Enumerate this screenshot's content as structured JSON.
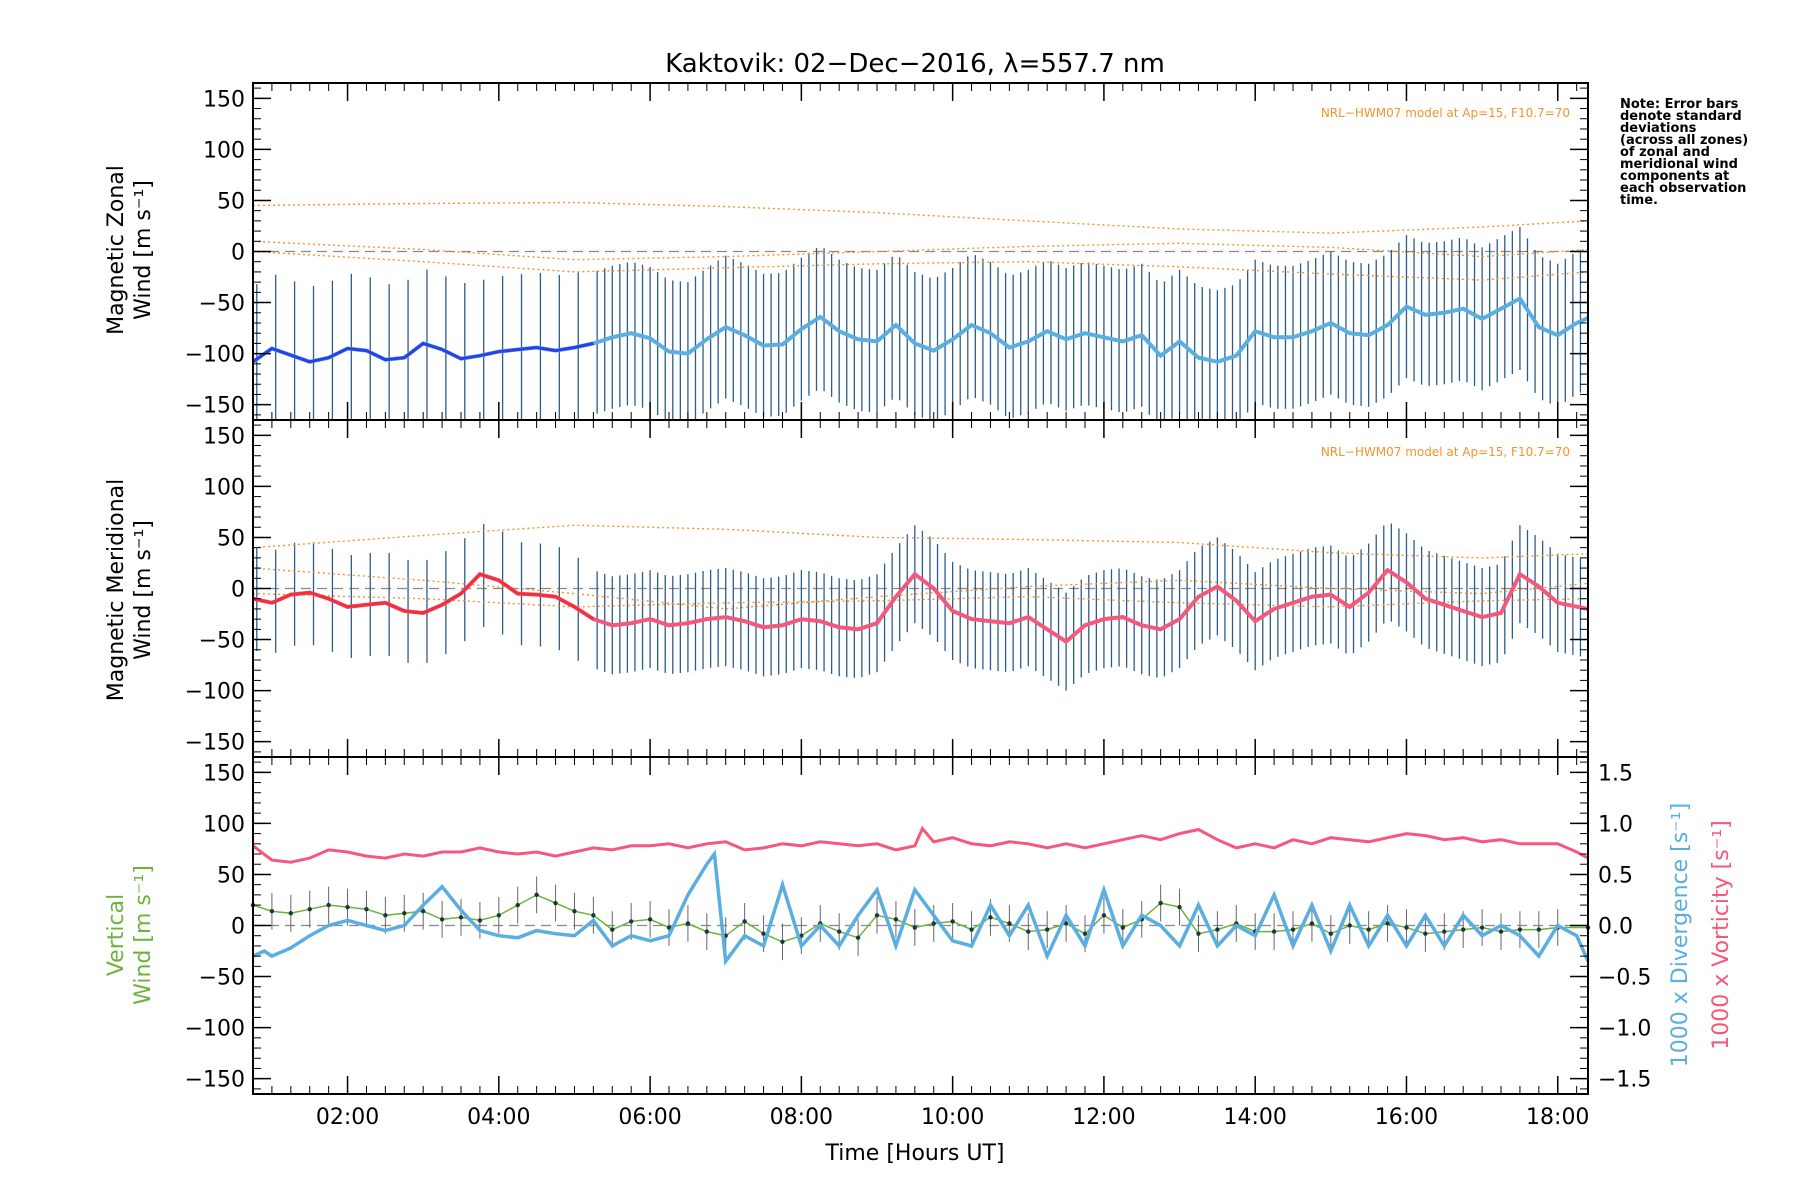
{
  "figure": {
    "title": "Kaktovik: 02−Dec−2016, λ=557.7 nm",
    "xlabel": "Time [Hours UT]",
    "note_lines": [
      "Note: Error bars",
      "denote standard",
      "deviations",
      "(across all zones)",
      "of zonal and",
      "meridional wind",
      "components at",
      "each observation",
      "time."
    ],
    "model_label": "NRL−HWM07 model at Ap=15, F10.7=70",
    "colors": {
      "zonal": "#2a3fe8",
      "zonal_light": "#5aaee0",
      "meridional": "#f0303c",
      "meridional_light": "#f5587a",
      "vertical": "#6ab43c",
      "divergence": "#5aaee0",
      "vorticity": "#f5587a",
      "error_bars": "#2d5d8a",
      "model": "#f5922b"
    }
  },
  "chart_data": [
    {
      "type": "line",
      "panel": "zonal",
      "ylabel": [
        "Magnetic Zonal",
        "Wind [m s⁻¹]"
      ],
      "ylim": [
        -165,
        165
      ],
      "yticks": [
        -150,
        -100,
        -50,
        0,
        50,
        100,
        150
      ],
      "xlim": [
        0.75,
        18.4
      ],
      "xticks": [
        2,
        4,
        6,
        8,
        10,
        12,
        14,
        16,
        18
      ],
      "xtick_labels": [
        "02:00",
        "04:00",
        "06:00",
        "08:00",
        "10:00",
        "12:00",
        "14:00",
        "16:00",
        "18:00"
      ],
      "series": [
        {
          "x": [
            0.75,
            1.0,
            1.5,
            1.75,
            2.0,
            2.25,
            2.5,
            2.75,
            3.0,
            3.25,
            3.5,
            3.75,
            4.0,
            4.25,
            4.5,
            4.75,
            5.0,
            5.25,
            5.5,
            5.75,
            6.0,
            6.25,
            6.5,
            6.75,
            7.0,
            7.25,
            7.5,
            7.75,
            8.0,
            8.25,
            8.5,
            8.75,
            9.0,
            9.25,
            9.5,
            9.75,
            10.0,
            10.25,
            10.5,
            10.75,
            11.0,
            11.25,
            11.5,
            11.75,
            12.0,
            12.25,
            12.5,
            12.75,
            13.0,
            13.25,
            13.5,
            13.75,
            14.0,
            14.25,
            14.5,
            14.75,
            15.0,
            15.25,
            15.5,
            15.75,
            16.0,
            16.25,
            16.5,
            16.75,
            17.0,
            17.25,
            17.5,
            17.75,
            18.0,
            18.25,
            18.4
          ],
          "y": [
            -108,
            -95,
            -108,
            -104,
            -95,
            -97,
            -106,
            -104,
            -90,
            -96,
            -105,
            -102,
            -98,
            -96,
            -94,
            -97,
            -94,
            -90,
            -84,
            -80,
            -85,
            -98,
            -100,
            -86,
            -74,
            -82,
            -92,
            -91,
            -76,
            -64,
            -78,
            -86,
            -88,
            -72,
            -90,
            -97,
            -86,
            -72,
            -80,
            -94,
            -88,
            -78,
            -86,
            -80,
            -84,
            -88,
            -82,
            -102,
            -88,
            -104,
            -108,
            -102,
            -78,
            -84,
            -84,
            -78,
            -70,
            -80,
            -82,
            -72,
            -54,
            -62,
            -60,
            -56,
            -66,
            -56,
            -46,
            -74,
            -82,
            -70,
            -65
          ],
          "std": 70
        }
      ],
      "model_lines": [
        {
          "x": [
            0.75,
            3.0,
            5.0,
            7.0,
            9.0,
            11.0,
            13.0,
            15.0,
            17.0,
            18.4
          ],
          "y": [
            45,
            47,
            48,
            44,
            38,
            30,
            22,
            18,
            24,
            30
          ]
        },
        {
          "x": [
            0.75,
            3.0,
            5.0,
            7.0,
            9.0,
            11.0,
            13.0,
            15.0,
            17.0,
            18.4
          ],
          "y": [
            10,
            2,
            -8,
            -5,
            0,
            5,
            8,
            4,
            -5,
            2
          ]
        },
        {
          "x": [
            0.75,
            3.0,
            5.0,
            7.0,
            9.0,
            11.0,
            13.0,
            15.0,
            17.0,
            18.4
          ],
          "y": [
            0,
            -10,
            -20,
            -16,
            -12,
            -10,
            -15,
            -22,
            -28,
            -20
          ]
        }
      ]
    },
    {
      "type": "line",
      "panel": "meridional",
      "ylabel": [
        "Magnetic Meridional",
        "Wind [m s⁻¹]"
      ],
      "ylim": [
        -165,
        165
      ],
      "yticks": [
        -150,
        -100,
        -50,
        0,
        50,
        100,
        150
      ],
      "xlim": [
        0.75,
        18.4
      ],
      "xticks": [
        2,
        4,
        6,
        8,
        10,
        12,
        14,
        16,
        18
      ],
      "xtick_labels": [
        "02:00",
        "04:00",
        "06:00",
        "08:00",
        "10:00",
        "12:00",
        "14:00",
        "16:00",
        "18:00"
      ],
      "series": [
        {
          "x": [
            0.75,
            1.0,
            1.25,
            1.5,
            1.75,
            2.0,
            2.25,
            2.5,
            2.75,
            3.0,
            3.25,
            3.5,
            3.75,
            4.0,
            4.25,
            4.5,
            4.75,
            5.0,
            5.25,
            5.5,
            5.75,
            6.0,
            6.25,
            6.5,
            6.75,
            7.0,
            7.25,
            7.5,
            7.75,
            8.0,
            8.25,
            8.5,
            8.75,
            9.0,
            9.25,
            9.5,
            9.75,
            10.0,
            10.25,
            10.5,
            10.75,
            11.0,
            11.25,
            11.5,
            11.75,
            12.0,
            12.25,
            12.5,
            12.75,
            13.0,
            13.25,
            13.5,
            13.75,
            14.0,
            14.25,
            14.5,
            14.75,
            15.0,
            15.25,
            15.5,
            15.75,
            16.0,
            16.25,
            16.5,
            16.75,
            17.0,
            17.25,
            17.5,
            17.75,
            18.0,
            18.4
          ],
          "y": [
            -10,
            -14,
            -6,
            -4,
            -10,
            -18,
            -16,
            -14,
            -22,
            -24,
            -16,
            -5,
            14,
            8,
            -5,
            -6,
            -8,
            -18,
            -30,
            -36,
            -34,
            -30,
            -36,
            -34,
            -30,
            -28,
            -32,
            -38,
            -36,
            -30,
            -32,
            -38,
            -40,
            -34,
            -8,
            14,
            0,
            -22,
            -30,
            -32,
            -34,
            -28,
            -40,
            -52,
            -36,
            -30,
            -28,
            -36,
            -40,
            -30,
            -8,
            2,
            -12,
            -32,
            -20,
            -14,
            -8,
            -6,
            -18,
            -4,
            18,
            6,
            -10,
            -16,
            -22,
            -28,
            -24,
            14,
            2,
            -14,
            -20
          ],
          "std": 48
        }
      ],
      "model_lines": [
        {
          "x": [
            0.75,
            3.0,
            5.0,
            7.0,
            9.0,
            11.0,
            13.0,
            15.0,
            17.0,
            18.4
          ],
          "y": [
            40,
            52,
            62,
            58,
            50,
            48,
            45,
            35,
            30,
            34
          ]
        },
        {
          "x": [
            0.75,
            3.0,
            5.0,
            7.0,
            9.0,
            11.0,
            13.0,
            15.0,
            17.0,
            18.4
          ],
          "y": [
            20,
            8,
            -5,
            -20,
            -8,
            2,
            8,
            0,
            -5,
            5
          ]
        },
        {
          "x": [
            0.75,
            3.0,
            5.0,
            7.0,
            9.0,
            11.0,
            13.0,
            15.0,
            17.0,
            18.4
          ],
          "y": [
            -5,
            -10,
            -18,
            -14,
            -12,
            -8,
            -14,
            -18,
            -12,
            -10
          ]
        }
      ]
    },
    {
      "type": "line",
      "panel": "vertical",
      "ylabel": [
        "Vertical",
        "Wind [m s⁻¹]"
      ],
      "ylim": [
        -165,
        165
      ],
      "yticks": [
        -150,
        -100,
        -50,
        0,
        50,
        100,
        150
      ],
      "y2label_div": "1000 x Divergence [s⁻¹]",
      "y2label_vort": "1000 x Vorticity [s⁻¹]",
      "y2lim": [
        -1.65,
        1.65
      ],
      "y2ticks": [
        -1.5,
        -1.0,
        -0.5,
        0.0,
        0.5,
        1.0,
        1.5
      ],
      "y2tick_labels": [
        "−1.5",
        "−1.0",
        "−0.5",
        "0.0",
        "0.5",
        "1.0",
        "1.5"
      ],
      "xlim": [
        0.75,
        18.4
      ],
      "xticks": [
        2,
        4,
        6,
        8,
        10,
        12,
        14,
        16,
        18
      ],
      "xtick_labels": [
        "02:00",
        "04:00",
        "06:00",
        "08:00",
        "10:00",
        "12:00",
        "14:00",
        "16:00",
        "18:00"
      ],
      "series": [
        {
          "name": "Vertical Wind",
          "axis": "left",
          "x": [
            0.75,
            1.0,
            1.25,
            1.5,
            1.75,
            2.0,
            2.25,
            2.5,
            2.75,
            3.0,
            3.25,
            3.5,
            3.75,
            4.0,
            4.25,
            4.5,
            4.75,
            5.0,
            5.25,
            5.5,
            5.75,
            6.0,
            6.25,
            6.5,
            6.75,
            7.0,
            7.25,
            7.5,
            7.75,
            8.0,
            8.25,
            8.5,
            8.75,
            9.0,
            9.25,
            9.5,
            9.75,
            10.0,
            10.25,
            10.5,
            10.75,
            11.0,
            11.25,
            11.5,
            11.75,
            12.0,
            12.25,
            12.5,
            12.75,
            13.0,
            13.25,
            13.5,
            13.75,
            14.0,
            14.25,
            14.5,
            14.75,
            15.0,
            15.25,
            15.5,
            15.75,
            16.0,
            16.25,
            16.5,
            16.75,
            17.0,
            17.25,
            17.5,
            17.75,
            18.0,
            18.4
          ],
          "y": [
            20,
            14,
            12,
            16,
            20,
            18,
            16,
            10,
            12,
            14,
            6,
            8,
            5,
            10,
            20,
            30,
            22,
            14,
            10,
            -4,
            4,
            6,
            -2,
            2,
            -6,
            -10,
            4,
            -8,
            -16,
            -10,
            2,
            -6,
            -12,
            10,
            6,
            -2,
            2,
            4,
            -4,
            8,
            2,
            -6,
            -4,
            2,
            -8,
            10,
            -2,
            6,
            22,
            18,
            -8,
            -4,
            2,
            -6,
            -6,
            -4,
            2,
            -8,
            0,
            -4,
            2,
            -2,
            -8,
            -6,
            -4,
            -2,
            -6,
            -4,
            -4,
            -2,
            -2
          ],
          "err": 18
        },
        {
          "name": "1000 x Divergence",
          "axis": "right",
          "x": [
            0.75,
            0.9,
            1.0,
            1.25,
            1.5,
            1.75,
            2.0,
            2.25,
            2.5,
            2.75,
            3.0,
            3.25,
            3.5,
            3.75,
            4.0,
            4.25,
            4.5,
            4.75,
            5.0,
            5.25,
            5.5,
            5.75,
            6.0,
            6.25,
            6.5,
            6.75,
            6.85,
            7.0,
            7.25,
            7.5,
            7.75,
            8.0,
            8.25,
            8.5,
            8.75,
            9.0,
            9.25,
            9.5,
            9.75,
            10.0,
            10.25,
            10.5,
            10.75,
            11.0,
            11.25,
            11.5,
            11.75,
            12.0,
            12.25,
            12.5,
            12.75,
            13.0,
            13.25,
            13.5,
            13.75,
            14.0,
            14.25,
            14.5,
            14.75,
            15.0,
            15.25,
            15.5,
            15.75,
            16.0,
            16.25,
            16.5,
            16.75,
            17.0,
            17.25,
            17.5,
            17.75,
            18.0,
            18.25,
            18.4
          ],
          "y": [
            -0.3,
            -0.25,
            -0.3,
            -0.22,
            -0.1,
            0.0,
            0.05,
            0.0,
            -0.05,
            0.0,
            0.2,
            0.38,
            0.15,
            -0.05,
            -0.1,
            -0.12,
            -0.05,
            -0.08,
            -0.1,
            0.05,
            -0.2,
            -0.1,
            -0.15,
            -0.1,
            0.3,
            0.6,
            0.7,
            -0.35,
            -0.1,
            -0.2,
            0.4,
            -0.2,
            0.0,
            -0.2,
            0.1,
            0.35,
            -0.2,
            0.35,
            0.1,
            -0.15,
            -0.2,
            0.2,
            -0.1,
            0.2,
            -0.3,
            0.1,
            -0.2,
            0.35,
            -0.2,
            0.1,
            0.0,
            -0.2,
            0.2,
            -0.2,
            0.0,
            -0.1,
            0.3,
            -0.2,
            0.2,
            -0.25,
            0.2,
            -0.2,
            0.1,
            -0.2,
            0.1,
            -0.2,
            0.1,
            -0.1,
            0.0,
            -0.1,
            -0.3,
            0.0,
            -0.1,
            -0.35
          ]
        },
        {
          "name": "1000 x Vorticity",
          "axis": "right",
          "x": [
            0.75,
            1.0,
            1.25,
            1.5,
            1.75,
            2.0,
            2.25,
            2.5,
            2.75,
            3.0,
            3.25,
            3.5,
            3.75,
            4.0,
            4.25,
            4.5,
            4.75,
            5.0,
            5.25,
            5.5,
            5.75,
            6.0,
            6.25,
            6.5,
            6.75,
            7.0,
            7.25,
            7.5,
            7.75,
            8.0,
            8.25,
            8.5,
            8.75,
            9.0,
            9.25,
            9.5,
            9.6,
            9.75,
            10.0,
            10.25,
            10.5,
            10.75,
            11.0,
            11.25,
            11.5,
            11.75,
            12.0,
            12.25,
            12.5,
            12.75,
            13.0,
            13.25,
            13.5,
            13.75,
            14.0,
            14.25,
            14.5,
            14.75,
            15.0,
            15.25,
            15.5,
            15.75,
            16.0,
            16.25,
            16.5,
            16.75,
            17.0,
            17.25,
            17.5,
            17.75,
            18.0,
            18.25,
            18.4
          ],
          "y": [
            0.78,
            0.64,
            0.62,
            0.66,
            0.74,
            0.72,
            0.68,
            0.66,
            0.7,
            0.68,
            0.72,
            0.72,
            0.76,
            0.72,
            0.7,
            0.72,
            0.68,
            0.72,
            0.76,
            0.74,
            0.78,
            0.78,
            0.8,
            0.76,
            0.8,
            0.82,
            0.74,
            0.76,
            0.8,
            0.78,
            0.82,
            0.8,
            0.78,
            0.8,
            0.74,
            0.78,
            0.95,
            0.82,
            0.86,
            0.8,
            0.78,
            0.82,
            0.8,
            0.76,
            0.8,
            0.76,
            0.8,
            0.84,
            0.88,
            0.84,
            0.9,
            0.94,
            0.84,
            0.76,
            0.8,
            0.76,
            0.84,
            0.8,
            0.86,
            0.84,
            0.82,
            0.86,
            0.9,
            0.88,
            0.84,
            0.86,
            0.82,
            0.84,
            0.8,
            0.8,
            0.8,
            0.72,
            0.66
          ]
        }
      ]
    }
  ]
}
